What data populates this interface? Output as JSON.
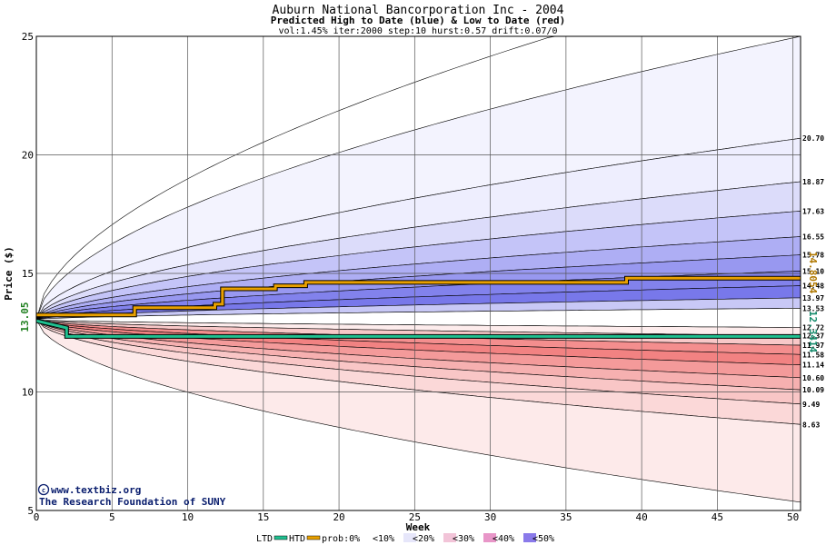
{
  "chart_data": {
    "type": "area",
    "title": "Auburn National Bancorporation Inc - 2004",
    "subtitle": "Predicted High to Date (blue) &  Low to Date (red)",
    "params": "vol:1.45% iter:2000 step:10 hurst:0.57 drift:0.07/0",
    "xlabel": "Week",
    "ylabel": "Price ($)",
    "xlim": [
      0,
      50.5
    ],
    "ylim": [
      5,
      25
    ],
    "xticks": [
      0,
      5,
      10,
      15,
      20,
      25,
      30,
      35,
      40,
      45,
      50
    ],
    "yticks": [
      5,
      10,
      15,
      20,
      25
    ],
    "grid": true,
    "start_price": 13.05,
    "start_label": "13.05",
    "high_label": "14.8054",
    "low_label": "12.3414",
    "upper_band_finals": [
      {
        "label": "20.70",
        "value": 20.7,
        "color": "#eeeefe"
      },
      {
        "label": "18.87",
        "value": 18.87,
        "color": "#dcdcfa"
      },
      {
        "label": "17.63",
        "value": 17.63,
        "color": "#c4c4f8"
      },
      {
        "label": "16.55",
        "value": 16.55,
        "color": "#aeaef4"
      },
      {
        "label": "15.78",
        "value": 15.78,
        "color": "#9898f0"
      },
      {
        "label": "15.10",
        "value": 15.1,
        "color": "#8282ec"
      },
      {
        "label": "14.48",
        "value": 14.48,
        "color": "#7878ea"
      },
      {
        "label": "13.97",
        "value": 13.97,
        "color": "#c8c8f6"
      },
      {
        "label": "13.53",
        "value": 13.53,
        "color": "#ececfc"
      }
    ],
    "lower_band_finals": [
      {
        "label": "12.72",
        "value": 12.72,
        "color": "#fdecec"
      },
      {
        "label": "12.37",
        "value": 12.37,
        "color": "#f8c8c8"
      },
      {
        "label": "11.97",
        "value": 11.97,
        "color": "#f48e8e"
      },
      {
        "label": "11.58",
        "value": 11.58,
        "color": "#f28282"
      },
      {
        "label": "11.14",
        "value": 11.14,
        "color": "#f49a9a"
      },
      {
        "label": "10.60",
        "value": 10.6,
        "color": "#f6b0b0"
      },
      {
        "label": "10.09",
        "value": 10.09,
        "color": "#f9c6c6"
      },
      {
        "label": "9.49",
        "value": 9.49,
        "color": "#fbd8d8"
      },
      {
        "label": "8.63",
        "value": 8.63,
        "color": "#fdeaea"
      }
    ],
    "outer_high_final": 25,
    "outer_low_final": 5.35,
    "high_to_date": {
      "x": [
        0,
        6.5,
        6.5,
        11.8,
        11.8,
        12.3,
        12.3,
        15.8,
        15.8,
        17.8,
        17.8,
        39,
        39,
        50.5
      ],
      "y": [
        13.25,
        13.25,
        13.55,
        13.55,
        13.7,
        13.7,
        14.35,
        14.35,
        14.48,
        14.48,
        14.62,
        14.62,
        14.8,
        14.8
      ],
      "color": "#e8a000"
    },
    "low_to_date": {
      "x": [
        0,
        1.0,
        2.0,
        2.0,
        50.5
      ],
      "y": [
        13.0,
        12.85,
        12.7,
        12.34,
        12.34
      ],
      "color": "#20c090"
    },
    "legend": {
      "ltd": "LTD",
      "htd": "HTD",
      "prob_prefix": "prob:0%",
      "buckets": [
        {
          "label": "<10%",
          "color": "#ffffff"
        },
        {
          "label": "<20%",
          "color": "#e6e6fa"
        },
        {
          "label": "<30%",
          "color": "#f2c4d8"
        },
        {
          "label": "<40%",
          "color": "#e896c8"
        },
        {
          "label": "<50%",
          "color": "#8a7aea"
        }
      ]
    }
  },
  "credit": {
    "line1": "www.textbiz.org",
    "line2": "The Research Foundation of SUNY"
  },
  "colors": {
    "htd_line": "#e8a000",
    "ltd_line": "#20c090",
    "high_label": "#b07800",
    "low_label": "#108868",
    "start_label": "#208020",
    "credit": "#0a1e6e"
  }
}
